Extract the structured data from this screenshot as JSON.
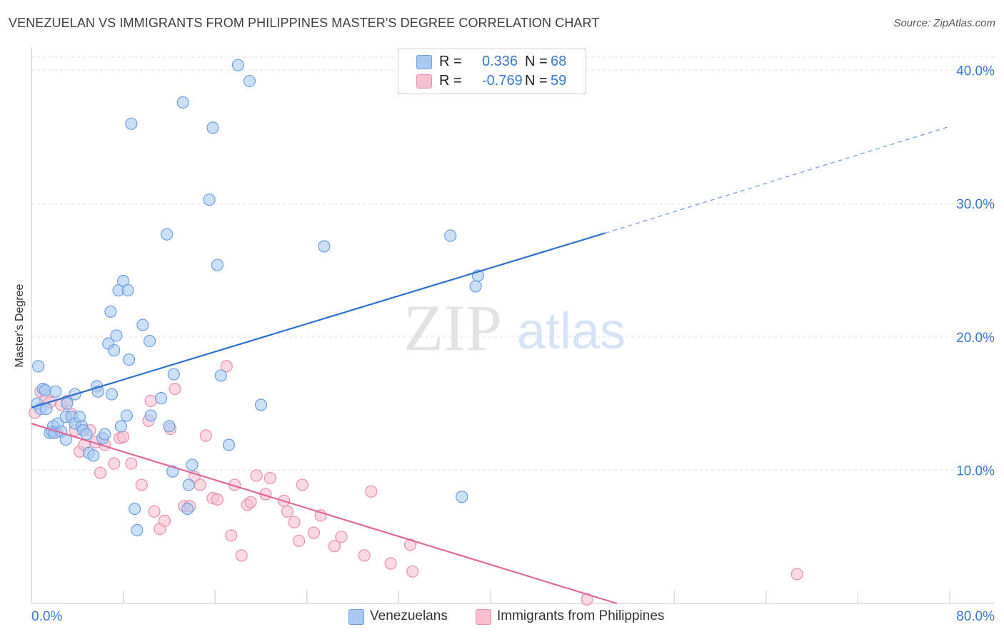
{
  "header": {
    "title": "VENEZUELAN VS IMMIGRANTS FROM PHILIPPINES MASTER'S DEGREE CORRELATION CHART",
    "source": "Source: ZipAtlas.com"
  },
  "watermark": {
    "zip": "ZIP",
    "atlas": "atlas"
  },
  "legend_top": {
    "rows": [
      {
        "r_label": "R =",
        "r_value": "0.336",
        "n_label": "N =",
        "n_value": "68"
      },
      {
        "r_label": "R =",
        "r_value": "-0.769",
        "n_label": "N =",
        "n_value": "59"
      }
    ]
  },
  "legend_bottom": {
    "items": [
      {
        "label": "Venezuelans"
      },
      {
        "label": "Immigrants from Philippines"
      }
    ]
  },
  "colors": {
    "venezuelans_fill": "#a9c9f2",
    "venezuelans_stroke": "#6d9ee0",
    "venezuelans_line": "#2f6fcf",
    "philippines_fill": "#f8bfd0",
    "philippines_stroke": "#e890ab",
    "philippines_line": "#e0679a",
    "tick_label": "#3a78d0",
    "grid": "#dddddd"
  },
  "chart_data": {
    "type": "scatter",
    "title": "VENEZUELAN VS IMMIGRANTS FROM PHILIPPINES MASTER'S DEGREE CORRELATION CHART",
    "xlabel": "",
    "ylabel": "Master's Degree",
    "xlim": [
      0,
      80
    ],
    "ylim": [
      0,
      41
    ],
    "x_tick_labels": [
      "0.0%",
      "80.0%"
    ],
    "y_ticks": [
      10,
      20,
      30,
      40
    ],
    "y_tick_labels": [
      "10.0%",
      "20.0%",
      "30.0%",
      "40.0%"
    ],
    "grid": "horizontal dashed",
    "legend_position": "top-center",
    "series": [
      {
        "name": "Venezuelans",
        "R": 0.336,
        "N": 68,
        "trend": {
          "x0": 0,
          "y0": 14.7,
          "x1": 50,
          "y1": 27.8,
          "dashed_to_x": 80,
          "dashed_to_y": 35.8
        },
        "points": [
          [
            0.5,
            15.0
          ],
          [
            0.6,
            17.8
          ],
          [
            0.8,
            14.6
          ],
          [
            1.0,
            16.1
          ],
          [
            1.2,
            16.0
          ],
          [
            1.3,
            14.6
          ],
          [
            1.6,
            12.8
          ],
          [
            1.8,
            12.9
          ],
          [
            1.9,
            13.3
          ],
          [
            2.0,
            12.8
          ],
          [
            2.1,
            15.9
          ],
          [
            2.3,
            13.5
          ],
          [
            2.6,
            12.9
          ],
          [
            3.0,
            12.3
          ],
          [
            3.0,
            14.0
          ],
          [
            3.1,
            15.0
          ],
          [
            3.5,
            14.0
          ],
          [
            3.8,
            13.5
          ],
          [
            3.8,
            15.7
          ],
          [
            4.2,
            14.0
          ],
          [
            4.4,
            13.3
          ],
          [
            4.5,
            13.0
          ],
          [
            4.8,
            12.7
          ],
          [
            5.0,
            11.3
          ],
          [
            5.4,
            11.1
          ],
          [
            5.7,
            16.3
          ],
          [
            5.8,
            15.9
          ],
          [
            6.2,
            12.4
          ],
          [
            6.4,
            12.7
          ],
          [
            6.7,
            19.5
          ],
          [
            6.9,
            21.9
          ],
          [
            7.0,
            15.7
          ],
          [
            7.2,
            19.0
          ],
          [
            7.4,
            20.1
          ],
          [
            7.6,
            23.5
          ],
          [
            7.8,
            13.3
          ],
          [
            8.0,
            24.2
          ],
          [
            8.3,
            14.1
          ],
          [
            8.4,
            23.5
          ],
          [
            8.5,
            18.3
          ],
          [
            8.7,
            36.0
          ],
          [
            9.0,
            7.1
          ],
          [
            9.2,
            5.5
          ],
          [
            9.7,
            20.9
          ],
          [
            10.3,
            19.7
          ],
          [
            10.4,
            14.1
          ],
          [
            11.3,
            15.4
          ],
          [
            11.8,
            27.7
          ],
          [
            12.0,
            13.3
          ],
          [
            12.3,
            9.9
          ],
          [
            12.4,
            17.2
          ],
          [
            13.2,
            37.6
          ],
          [
            13.6,
            7.1
          ],
          [
            13.7,
            8.9
          ],
          [
            14.0,
            10.4
          ],
          [
            15.5,
            30.3
          ],
          [
            15.8,
            35.7
          ],
          [
            16.2,
            25.4
          ],
          [
            16.5,
            17.1
          ],
          [
            17.2,
            11.9
          ],
          [
            18.0,
            40.4
          ],
          [
            19.0,
            39.2
          ],
          [
            20.0,
            14.9
          ],
          [
            25.5,
            26.8
          ],
          [
            36.5,
            27.6
          ],
          [
            37.5,
            8.0
          ],
          [
            38.7,
            23.8
          ],
          [
            38.9,
            24.6
          ]
        ]
      },
      {
        "name": "Immigrants from Philippines",
        "R": -0.769,
        "N": 59,
        "trend": {
          "x0": 0,
          "y0": 13.5,
          "x1": 51,
          "y1": 0.0
        },
        "points": [
          [
            0.3,
            14.3
          ],
          [
            0.8,
            15.9
          ],
          [
            1.2,
            15.3
          ],
          [
            1.6,
            15.1
          ],
          [
            2.2,
            12.9
          ],
          [
            2.6,
            14.9
          ],
          [
            3.1,
            15.2
          ],
          [
            3.5,
            14.2
          ],
          [
            3.8,
            13.0
          ],
          [
            4.2,
            11.4
          ],
          [
            4.6,
            11.9
          ],
          [
            5.1,
            13.0
          ],
          [
            5.6,
            12.1
          ],
          [
            6.0,
            9.8
          ],
          [
            6.4,
            11.9
          ],
          [
            7.2,
            10.5
          ],
          [
            7.7,
            12.4
          ],
          [
            8.0,
            12.5
          ],
          [
            8.7,
            10.5
          ],
          [
            9.6,
            8.9
          ],
          [
            10.2,
            13.7
          ],
          [
            10.4,
            15.2
          ],
          [
            10.7,
            6.9
          ],
          [
            11.2,
            5.6
          ],
          [
            11.6,
            6.2
          ],
          [
            12.1,
            13.1
          ],
          [
            12.5,
            16.1
          ],
          [
            13.3,
            7.3
          ],
          [
            13.8,
            7.3
          ],
          [
            14.2,
            9.5
          ],
          [
            14.7,
            8.9
          ],
          [
            15.2,
            12.6
          ],
          [
            15.8,
            7.9
          ],
          [
            16.2,
            7.8
          ],
          [
            17.0,
            17.8
          ],
          [
            17.4,
            5.1
          ],
          [
            17.7,
            8.9
          ],
          [
            18.3,
            3.6
          ],
          [
            18.8,
            7.4
          ],
          [
            19.1,
            7.6
          ],
          [
            19.6,
            9.6
          ],
          [
            20.4,
            8.2
          ],
          [
            20.8,
            9.4
          ],
          [
            22.0,
            7.7
          ],
          [
            22.3,
            6.9
          ],
          [
            22.9,
            6.1
          ],
          [
            23.3,
            4.7
          ],
          [
            23.6,
            8.9
          ],
          [
            24.6,
            5.3
          ],
          [
            25.2,
            6.6
          ],
          [
            26.4,
            4.3
          ],
          [
            27.0,
            5.0
          ],
          [
            29.0,
            3.6
          ],
          [
            29.6,
            8.4
          ],
          [
            31.3,
            3.0
          ],
          [
            33.0,
            4.4
          ],
          [
            33.2,
            2.4
          ],
          [
            48.4,
            0.3
          ],
          [
            66.7,
            2.2
          ]
        ]
      }
    ]
  }
}
